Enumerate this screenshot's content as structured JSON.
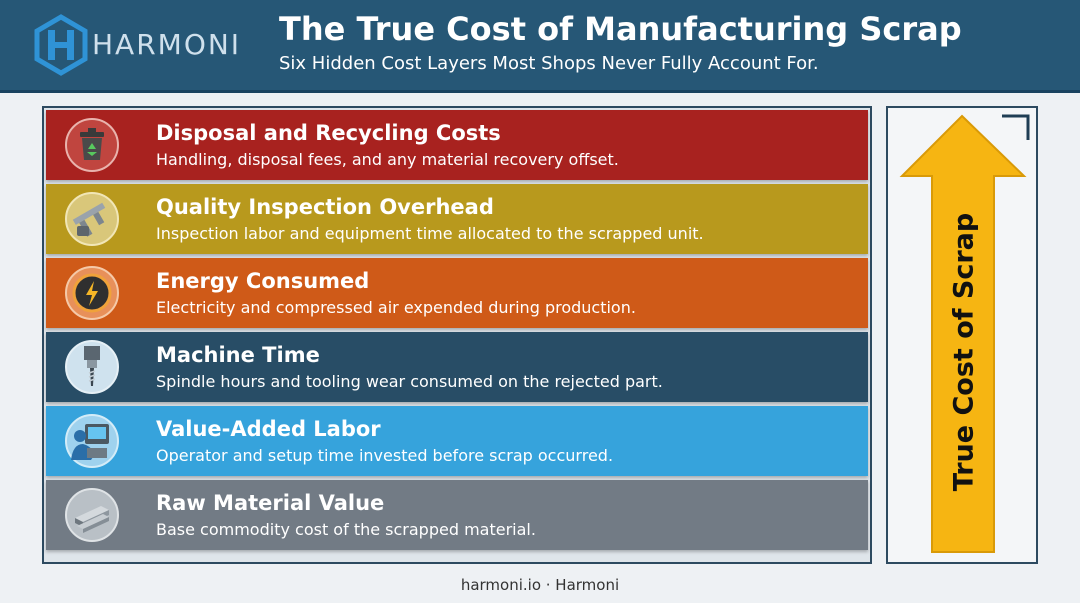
{
  "header": {
    "logo_text": "HARMONI",
    "title": "The True Cost of Manufacturing Scrap",
    "subtitle": "Six Hidden Cost Layers Most Shops Never Fully Account For."
  },
  "layers": [
    {
      "title": "Disposal and Recycling Costs",
      "description": "Handling, disposal fees, and any material recovery offset.",
      "color": "#a8221f",
      "icon": "recycling-bin-icon"
    },
    {
      "title": "Quality Inspection Overhead",
      "description": "Inspection labor and equipment time allocated to the scrapped unit.",
      "color": "#b8991d",
      "icon": "caliper-icon"
    },
    {
      "title": "Energy Consumed",
      "description": "Electricity and compressed air expended during production.",
      "color": "#cf5a18",
      "icon": "energy-gauge-icon"
    },
    {
      "title": "Machine Time",
      "description": "Spindle hours and tooling wear consumed on the rejected part.",
      "color": "#284d66",
      "icon": "spindle-icon"
    },
    {
      "title": "Value-Added Labor",
      "description": "Operator and setup time invested before scrap occurred.",
      "color": "#36a3dc",
      "icon": "operator-icon"
    },
    {
      "title": "Raw Material Value",
      "description": "Base commodity cost of the scrapped material.",
      "color": "#727b85",
      "icon": "steel-bars-icon"
    }
  ],
  "arrow": {
    "label": "True Cost of Scrap",
    "color": "#f6b512"
  },
  "footer": {
    "text": "harmoni.io · Harmoni"
  }
}
